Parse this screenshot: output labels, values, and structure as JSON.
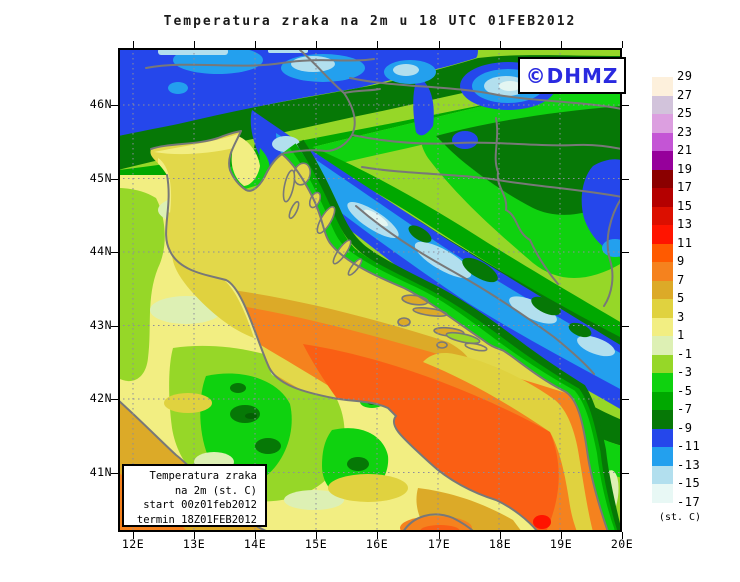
{
  "title": "Temperatura zraka na 2m u 18 UTC 01FEB2012",
  "badge": {
    "text": "©DHMZ",
    "color": "#2a2ae0"
  },
  "info_box": {
    "lines": [
      "Temperatura zraka",
      "na 2m (st. C)",
      "start 00z01feb2012",
      "termin 18Z01FEB2012"
    ]
  },
  "axes": {
    "lat": [
      "46N",
      "45N",
      "44N",
      "43N",
      "42N",
      "41N"
    ],
    "lon": [
      "12E",
      "13E",
      "14E",
      "15E",
      "16E",
      "17E",
      "18E",
      "19E",
      "20E"
    ]
  },
  "colorbar": {
    "unit": "(st. C)",
    "labels": [
      "29",
      "27",
      "25",
      "23",
      "21",
      "19",
      "17",
      "15",
      "13",
      "11",
      "9",
      "7",
      "5",
      "3",
      "1",
      "-1",
      "-3",
      "-5",
      "-7",
      "-9",
      "-11",
      "-13",
      "-15",
      "-17"
    ],
    "colors": [
      "#fdf0dc",
      "#d2c3db",
      "#dc9fe0",
      "#c455d5",
      "#96009b",
      "#8b0000",
      "#b40000",
      "#dc0f00",
      "#ff1400",
      "#ff5a00",
      "#f5821e",
      "#dcaa28",
      "#e0d23f",
      "#f2ee82",
      "#ddf0b4",
      "#96d728",
      "#0fd20f",
      "#00a800",
      "#067806",
      "#2547eb",
      "#23a0ee",
      "#b2dfee",
      "#e8f8f5"
    ]
  }
}
